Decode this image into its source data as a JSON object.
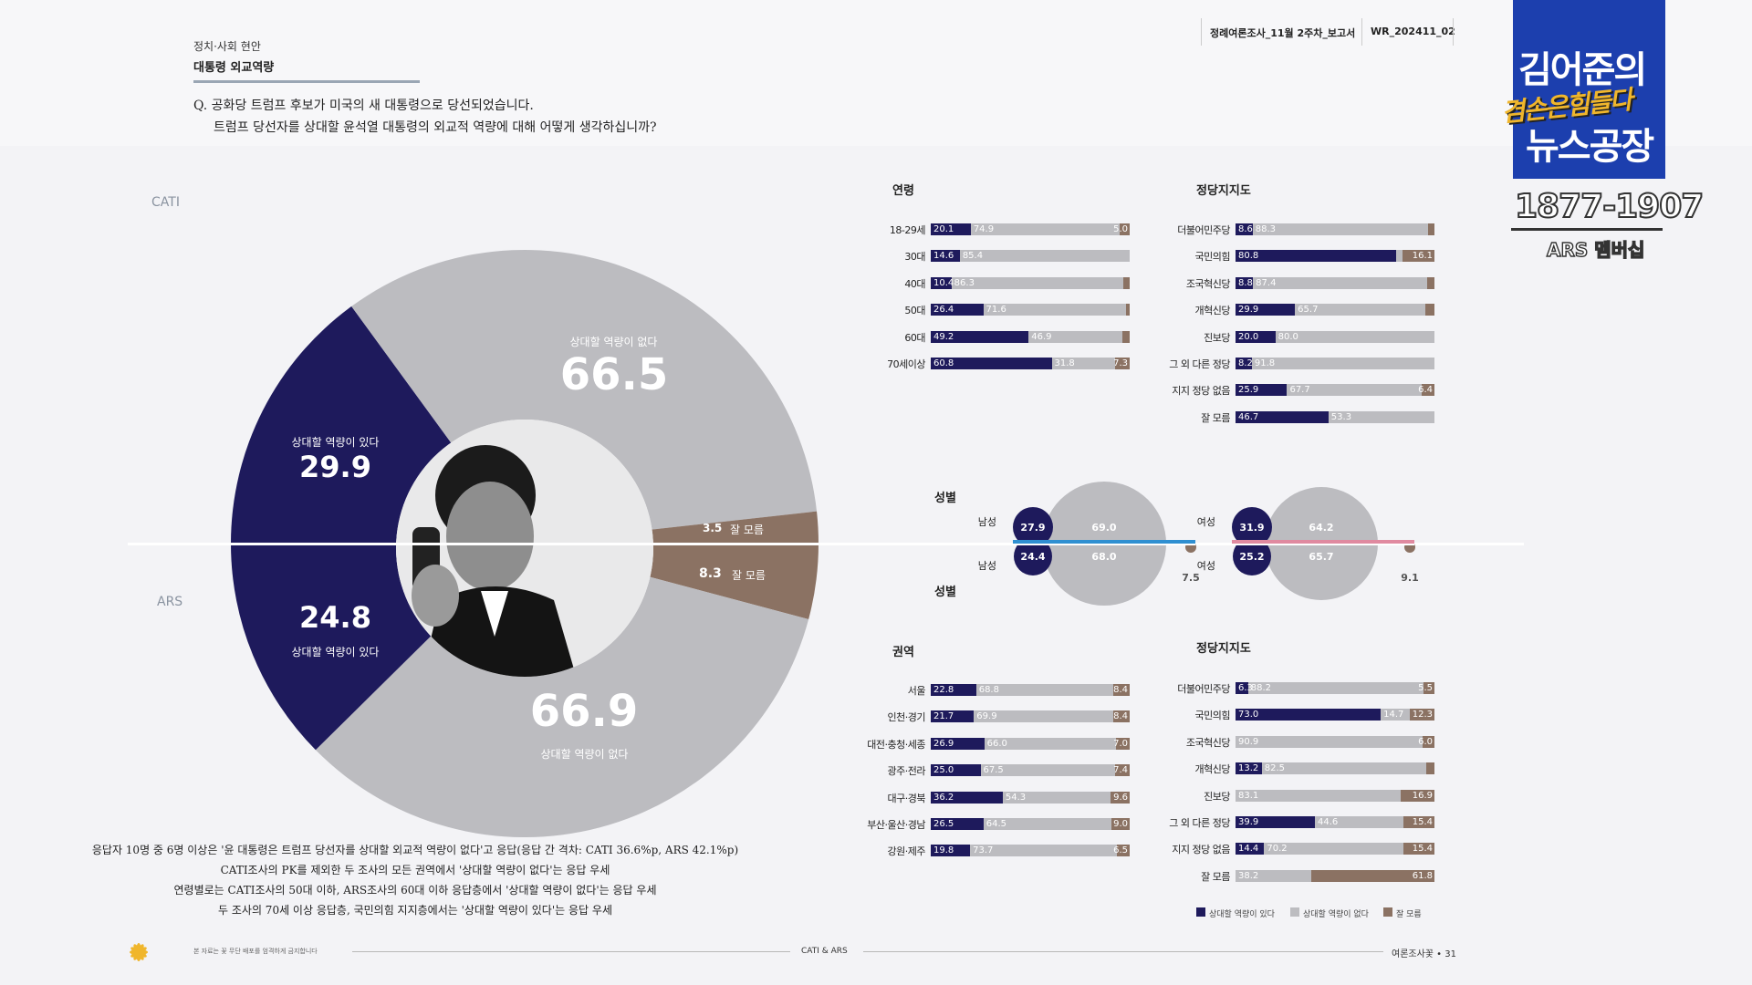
{
  "header": {
    "category": "정치·사회 현안",
    "title": "대통령 외교역량",
    "question_line1": "Q. 공화당 트럼프 후보가 미국의 새 대통령으로 당선되었습니다.",
    "question_line2": "트럼프 당선자를 상대할 윤석열 대통령의 외교적 역량에 대해 어떻게 생각하십니까?",
    "report_name": "정례여론조사_11월 2주차_보고서",
    "report_id": "WR_202411_02"
  },
  "channel_logo": {
    "line1": "김어준의",
    "line2": "겸손은힘들다",
    "line3": "뉴스공장",
    "phone": "1877-1907",
    "membership": "ARS 멤버십"
  },
  "colors": {
    "capable": "#1e1a5c",
    "incapable": "#bcbcc0",
    "dontknow": "#8b7263",
    "male_line": "#2f8fd1",
    "female_line": "#e08aa0"
  },
  "chart_data": [
    {
      "type": "pie",
      "title": "CATI",
      "slices": [
        {
          "label": "상대할 역량이 있다",
          "value": 29.9
        },
        {
          "label": "상대할 역량이 없다",
          "value": 66.5
        },
        {
          "label": "잘 모름",
          "value": 3.5
        }
      ]
    },
    {
      "type": "pie",
      "title": "ARS",
      "slices": [
        {
          "label": "상대할 역량이 있다",
          "value": 24.8
        },
        {
          "label": "상대할 역량이 없다",
          "value": 66.9
        },
        {
          "label": "잘 모름",
          "value": 8.3
        }
      ]
    },
    {
      "type": "bar",
      "stacked": true,
      "title": "연령",
      "categories": [
        "18-29세",
        "30대",
        "40대",
        "50대",
        "60대",
        "70세이상"
      ],
      "series": [
        {
          "name": "상대할 역량이 있다",
          "values": [
            20.1,
            14.6,
            10.4,
            26.4,
            49.2,
            60.8
          ]
        },
        {
          "name": "상대할 역량이 없다",
          "values": [
            74.9,
            85.4,
            86.3,
            71.6,
            46.9,
            31.8
          ]
        },
        {
          "name": "잘 모름",
          "values": [
            5.0,
            null,
            null,
            null,
            null,
            7.3
          ]
        }
      ]
    },
    {
      "type": "bar",
      "stacked": true,
      "title": "정당지지도",
      "categories": [
        "더불어민주당",
        "국민의힘",
        "조국혁신당",
        "개혁신당",
        "진보당",
        "그 외 다른 정당",
        "지지 정당 없음",
        "잘 모름"
      ],
      "series": [
        {
          "name": "상대할 역량이 있다",
          "values": [
            8.6,
            80.8,
            8.8,
            29.9,
            20.0,
            8.2,
            25.9,
            46.7
          ]
        },
        {
          "name": "상대할 역량이 없다",
          "values": [
            88.3,
            null,
            87.4,
            65.7,
            80.0,
            91.8,
            67.7,
            53.3
          ]
        },
        {
          "name": "잘 모름",
          "values": [
            null,
            16.1,
            null,
            null,
            null,
            null,
            6.4,
            null
          ]
        }
      ]
    },
    {
      "type": "bar",
      "title": "성별",
      "categories": [
        "남성",
        "여성"
      ],
      "series": [
        {
          "name": "CATI 상대할 역량이 있다",
          "values": [
            27.9,
            31.9
          ]
        },
        {
          "name": "CATI 상대할 역량이 없다",
          "values": [
            69.0,
            64.2
          ]
        },
        {
          "name": "ARS 상대할 역량이 있다",
          "values": [
            24.4,
            25.2
          ]
        },
        {
          "name": "ARS 상대할 역량이 없다",
          "values": [
            68.0,
            65.7
          ]
        },
        {
          "name": "ARS 잘 모름",
          "values": [
            7.5,
            9.1
          ]
        }
      ]
    },
    {
      "type": "bar",
      "stacked": true,
      "title": "권역",
      "categories": [
        "서울",
        "인천·경기",
        "대전·충청·세종",
        "광주·전라",
        "대구·경북",
        "부산·울산·경남",
        "강원·제주"
      ],
      "series": [
        {
          "name": "상대할 역량이 있다",
          "values": [
            22.8,
            21.7,
            26.9,
            25.0,
            36.2,
            26.5,
            19.8
          ]
        },
        {
          "name": "상대할 역량이 없다",
          "values": [
            68.8,
            69.9,
            66.0,
            67.5,
            54.3,
            64.5,
            73.7
          ]
        },
        {
          "name": "잘 모름",
          "values": [
            8.4,
            8.4,
            7.0,
            7.4,
            9.6,
            9.0,
            6.5
          ]
        }
      ]
    },
    {
      "type": "bar",
      "stacked": true,
      "title": "정당지지도",
      "categories": [
        "더불어민주당",
        "국민의힘",
        "조국혁신당",
        "개혁신당",
        "진보당",
        "그 외 다른 정당",
        "지지 정당 없음",
        "잘 모름"
      ],
      "series": [
        {
          "name": "상대할 역량이 있다",
          "values": [
            6.3,
            73.0,
            null,
            13.2,
            null,
            39.9,
            14.4,
            null
          ]
        },
        {
          "name": "상대할 역량이 없다",
          "values": [
            88.2,
            14.7,
            90.9,
            82.5,
            83.1,
            44.6,
            70.2,
            38.2
          ]
        },
        {
          "name": "잘 모름",
          "values": [
            5.5,
            12.3,
            6.0,
            null,
            16.9,
            15.4,
            15.4,
            61.8
          ]
        }
      ]
    }
  ],
  "labels": {
    "cati": "CATI",
    "ars": "ARS",
    "gender": "성별",
    "male": "남성",
    "female": "여성",
    "cati_yes_label": "상대할 역량이 있다",
    "cati_no_label": "상대할 역량이 없다",
    "cati_dk_label": "잘 모름",
    "ars_yes_label": "상대할 역량이 있다",
    "ars_no_label": "상대할 역량이 없다",
    "ars_dk_label": "잘 모름"
  },
  "summary": [
    "응답자 10명 중 6명 이상은 '윤 대통령은 트럼프 당선자를 상대할 외교적 역량이 없다'고 응답(응답 간 격차: CATI 36.6%p, ARS 42.1%p)",
    "CATI조사의 PK를 제외한 두 조사의 모든 권역에서 '상대할 역량이 없다'는 응답 우세",
    "연령별로는 CATI조사의 50대 이하, ARS조사의 60대 이하 응답층에서 '상대할 역량이 없다'는 응답 우세",
    "두 조사의 70세 이상 응답층, 국민의힘 지지층에서는 '상대할 역량이 있다'는 응답 우세"
  ],
  "legend": [
    "상대할 역량이 있다",
    "상대할 역량이 없다",
    "잘 모름"
  ],
  "footer": {
    "note": "본 자료는 꽃 무단 배포를 엄격하게 금지합니다",
    "center": "CATI & ARS",
    "page": "여론조사꽃 • 31"
  }
}
